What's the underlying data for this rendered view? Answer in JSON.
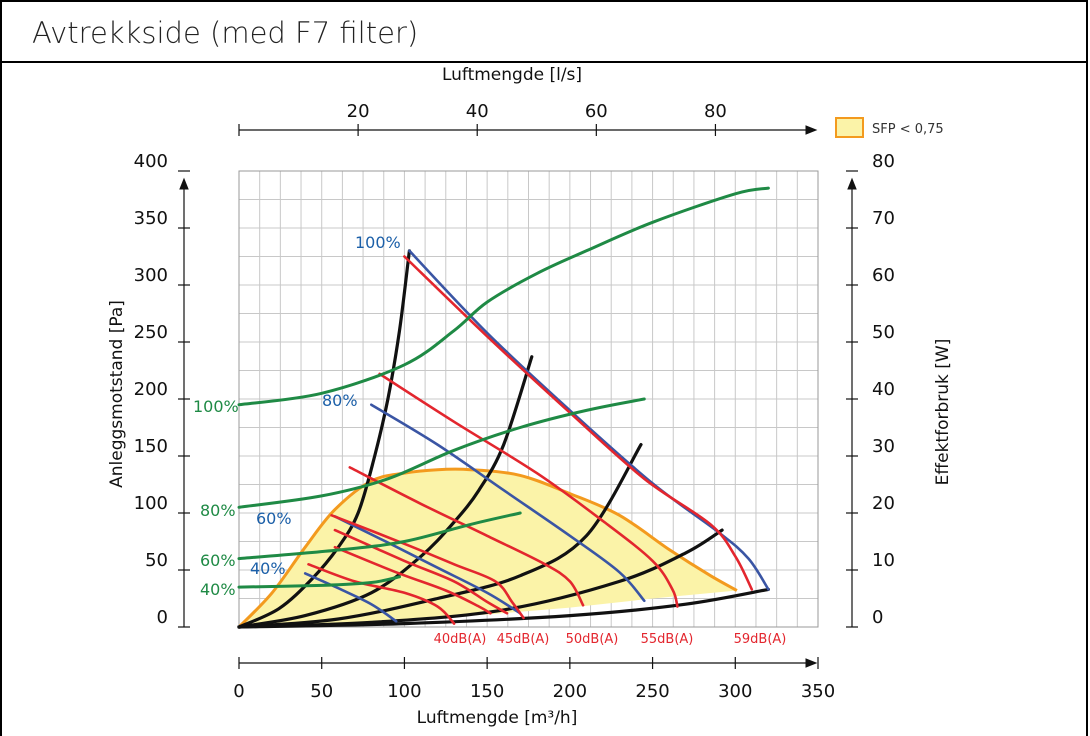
{
  "page": {
    "title": "Avtrekkside (med F7 filter)"
  },
  "colors": {
    "black": "#111111",
    "red": "#e3262e",
    "blue": "#3a55a4",
    "green": "#1f8a45",
    "orange": "#f39a1e",
    "fill": "#fbf3a8",
    "grid": "#c8c8c8",
    "label_blue": "#1b5fa8",
    "label_red": "#e3262e",
    "label_green": "#1f8a45"
  },
  "chart_data": {
    "type": "line",
    "title": "Avtrekkside (med F7 filter)",
    "xlabel": "Luftmengde [m³/h]",
    "x2label": "Luftmengde [l/s]",
    "ylabel": "Anleggsmotstand [Pa]",
    "y2label": "Effektforbruk [W]",
    "xlim": [
      0,
      350
    ],
    "ylim": [
      0,
      400
    ],
    "x2_ticks": [
      "20",
      "40",
      "60",
      "80"
    ],
    "x2_tick_values_ls": [
      20,
      40,
      60,
      80
    ],
    "x_ticks": [
      "0",
      "50",
      "100",
      "150",
      "200",
      "250",
      "300",
      "350"
    ],
    "x_tick_values": [
      0,
      50,
      100,
      150,
      200,
      250,
      300,
      350
    ],
    "y_ticks": [
      "0",
      "50",
      "100",
      "150",
      "200",
      "250",
      "300",
      "350",
      "400"
    ],
    "y_tick_values": [
      0,
      50,
      100,
      150,
      200,
      250,
      300,
      350,
      400
    ],
    "y2_ticks": [
      "0",
      "10",
      "20",
      "30",
      "40",
      "50",
      "60",
      "70",
      "80"
    ],
    "y2_tick_values": [
      0,
      10,
      20,
      30,
      40,
      50,
      60,
      70,
      80
    ],
    "grid": true,
    "legend": {
      "label": "SFP < 0,75",
      "placement": "top-right"
    },
    "sfp_region": [
      [
        0,
        0
      ],
      [
        20,
        30
      ],
      [
        40,
        70
      ],
      [
        58,
        103
      ],
      [
        80,
        128
      ],
      [
        100,
        135
      ],
      [
        120,
        138
      ],
      [
        140,
        138
      ],
      [
        170,
        133
      ],
      [
        200,
        117
      ],
      [
        230,
        98
      ],
      [
        260,
        68
      ],
      [
        285,
        45
      ],
      [
        301,
        32
      ],
      [
        301,
        32
      ],
      [
        250,
        25
      ],
      [
        200,
        17
      ],
      [
        150,
        11
      ],
      [
        100,
        6
      ],
      [
        50,
        2
      ],
      [
        0,
        0
      ]
    ],
    "system_curves": [
      {
        "name": "",
        "points": [
          [
            0,
            0
          ],
          [
            24,
            16
          ],
          [
            44,
            42
          ],
          [
            60,
            70
          ],
          [
            72,
            100
          ],
          [
            82,
            150
          ],
          [
            90,
            200
          ],
          [
            97,
            260
          ],
          [
            103,
            330
          ]
        ]
      },
      {
        "name": "",
        "points": [
          [
            0,
            0
          ],
          [
            40,
            10
          ],
          [
            80,
            30
          ],
          [
            110,
            62
          ],
          [
            130,
            92
          ],
          [
            145,
            120
          ],
          [
            160,
            160
          ],
          [
            177,
            237
          ]
        ]
      },
      {
        "name": "",
        "points": [
          [
            0,
            0
          ],
          [
            60,
            7
          ],
          [
            120,
            25
          ],
          [
            170,
            45
          ],
          [
            210,
            80
          ],
          [
            243,
            160
          ]
        ]
      },
      {
        "name": "",
        "points": [
          [
            0,
            0
          ],
          [
            80,
            4
          ],
          [
            160,
            15
          ],
          [
            230,
            40
          ],
          [
            270,
            65
          ],
          [
            292,
            85
          ]
        ]
      },
      {
        "name": "",
        "points": [
          [
            0,
            0
          ],
          [
            100,
            3
          ],
          [
            200,
            10
          ],
          [
            270,
            20
          ],
          [
            320,
            33
          ]
        ]
      }
    ],
    "fan_curves_blue": [
      {
        "name": "100%",
        "points": [
          [
            103,
            330
          ],
          [
            150,
            258
          ],
          [
            200,
            190
          ],
          [
            250,
            126
          ],
          [
            290,
            83
          ],
          [
            308,
            60
          ],
          [
            320,
            33
          ]
        ]
      },
      {
        "name": "80%",
        "points": [
          [
            80,
            195
          ],
          [
            120,
            160
          ],
          [
            160,
            120
          ],
          [
            200,
            80
          ],
          [
            230,
            48
          ],
          [
            245,
            23
          ]
        ]
      },
      {
        "name": "60%",
        "points": [
          [
            58,
            97
          ],
          [
            90,
            74
          ],
          [
            120,
            52
          ],
          [
            150,
            30
          ],
          [
            170,
            12
          ]
        ]
      },
      {
        "name": "40%",
        "points": [
          [
            40,
            47
          ],
          [
            60,
            34
          ],
          [
            80,
            20
          ],
          [
            95,
            5
          ]
        ]
      }
    ],
    "fan_curves_red": [
      {
        "name": "59dB(A)",
        "points": [
          [
            100,
            325
          ],
          [
            150,
            255
          ],
          [
            200,
            188
          ],
          [
            245,
            130
          ],
          [
            285,
            90
          ],
          [
            300,
            62
          ],
          [
            310,
            33
          ]
        ]
      },
      {
        "name": "55dB(A)",
        "points": [
          [
            85,
            222
          ],
          [
            130,
            180
          ],
          [
            180,
            135
          ],
          [
            220,
            93
          ],
          [
            250,
            58
          ],
          [
            262,
            33
          ],
          [
            265,
            18
          ]
        ]
      },
      {
        "name": "50dB(A)",
        "points": [
          [
            67,
            140
          ],
          [
            110,
            108
          ],
          [
            150,
            80
          ],
          [
            185,
            55
          ],
          [
            200,
            40
          ],
          [
            208,
            19
          ]
        ]
      },
      {
        "name": "45dB(A)",
        "points": [
          [
            56,
            98
          ],
          [
            100,
            73
          ],
          [
            130,
            55
          ],
          [
            155,
            40
          ],
          [
            165,
            22
          ],
          [
            172,
            8
          ]
        ]
      },
      {
        "name": "40dB(A)",
        "points": [
          [
            42,
            55
          ],
          [
            70,
            40
          ],
          [
            100,
            30
          ],
          [
            120,
            18
          ],
          [
            130,
            3
          ]
        ]
      }
    ],
    "fan_curves_red_short": [
      {
        "name": "",
        "points": [
          [
            58,
            85
          ],
          [
            100,
            58
          ],
          [
            130,
            40
          ],
          [
            150,
            22
          ],
          [
            162,
            12
          ]
        ]
      },
      {
        "name": "",
        "points": [
          [
            58,
            70
          ],
          [
            95,
            48
          ],
          [
            125,
            32
          ],
          [
            145,
            18
          ],
          [
            152,
            12
          ]
        ]
      }
    ],
    "power_curves": [
      {
        "name": "100%",
        "points": [
          [
            0,
            39
          ],
          [
            50,
            41
          ],
          [
            100,
            46
          ],
          [
            130,
            52
          ],
          [
            150,
            57
          ],
          [
            180,
            62
          ],
          [
            210,
            66
          ],
          [
            250,
            71
          ],
          [
            300,
            76
          ],
          [
            320,
            77
          ]
        ]
      },
      {
        "name": "80%",
        "points": [
          [
            0,
            21
          ],
          [
            50,
            23
          ],
          [
            90,
            26
          ],
          [
            130,
            31
          ],
          [
            170,
            35
          ],
          [
            210,
            38
          ],
          [
            245,
            40
          ]
        ]
      },
      {
        "name": "60%",
        "points": [
          [
            0,
            12
          ],
          [
            60,
            13.5
          ],
          [
            100,
            15
          ],
          [
            140,
            18
          ],
          [
            170,
            20
          ]
        ]
      },
      {
        "name": "40%",
        "points": [
          [
            0,
            7
          ],
          [
            50,
            7.3
          ],
          [
            80,
            7.8
          ],
          [
            97,
            8.8
          ]
        ]
      }
    ],
    "labels": {
      "blue_100": "100%",
      "blue_80": "80%",
      "blue_60": "60%",
      "blue_40": "40%",
      "green_100": "100%",
      "green_80": "80%",
      "green_60": "60%",
      "green_40": "40%",
      "db_40": "40dB(A)",
      "db_45": "45dB(A)",
      "db_50": "50dB(A)",
      "db_55": "55dB(A)",
      "db_59": "59dB(A)"
    }
  }
}
